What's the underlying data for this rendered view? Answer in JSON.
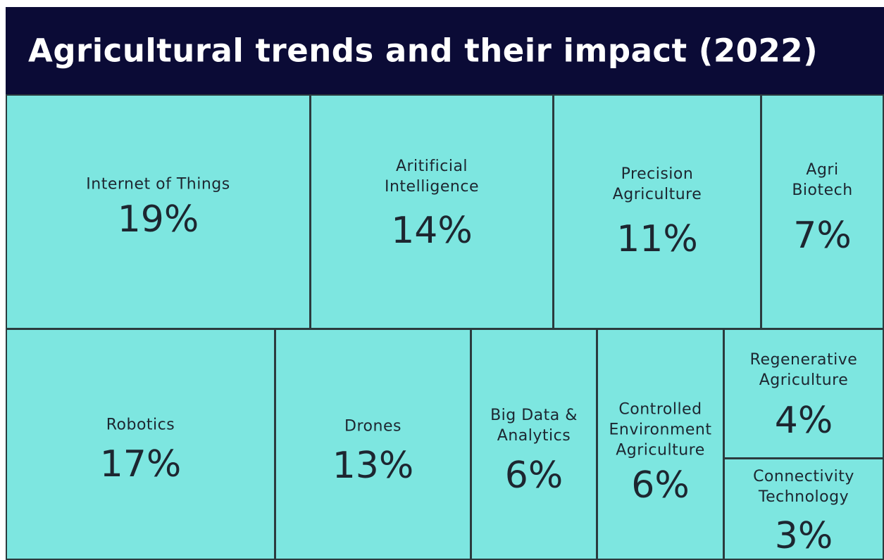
{
  "chart_data": {
    "type": "treemap",
    "title": "Agricultural trends and their impact (2022)",
    "categories": [
      "Internet of Things",
      "Aritificial Intelligence",
      "Precision Agriculture",
      "Agri Biotech",
      "Robotics",
      "Drones",
      "Big Data & Analytics",
      "Controlled Environment Agriculture",
      "Regenerative Agriculture",
      "Connectivity Technology"
    ],
    "values": [
      19,
      14,
      11,
      7,
      17,
      13,
      6,
      6,
      4,
      3
    ],
    "value_labels": [
      "19%",
      "14%",
      "11%",
      "7%",
      "17%",
      "13%",
      "6%",
      "6%",
      "4%",
      "3%"
    ],
    "color": "#7de6e0"
  }
}
